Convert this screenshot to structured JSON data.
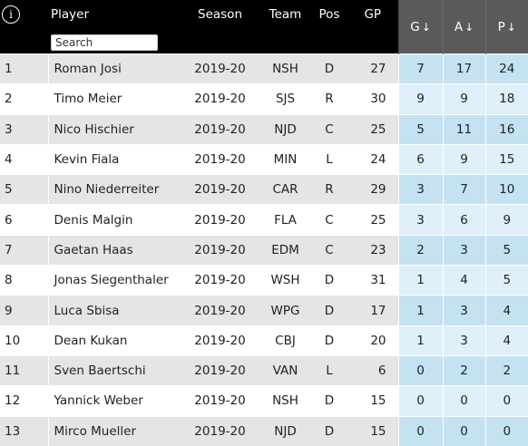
{
  "header": {
    "info_icon": "i",
    "player": "Player",
    "season": "Season",
    "team": "Team",
    "pos": "Pos",
    "gp": "GP",
    "g": "G",
    "a": "A",
    "p": "P",
    "sort_arrow": "↓",
    "search_placeholder": "Search"
  },
  "rows": [
    {
      "rank": "1",
      "player": "Roman Josi",
      "season": "2019-20",
      "team": "NSH",
      "pos": "D",
      "gp": "27",
      "g": "7",
      "a": "17",
      "p": "24"
    },
    {
      "rank": "2",
      "player": "Timo Meier",
      "season": "2019-20",
      "team": "SJS",
      "pos": "R",
      "gp": "30",
      "g": "9",
      "a": "9",
      "p": "18"
    },
    {
      "rank": "3",
      "player": "Nico Hischier",
      "season": "2019-20",
      "team": "NJD",
      "pos": "C",
      "gp": "25",
      "g": "5",
      "a": "11",
      "p": "16"
    },
    {
      "rank": "4",
      "player": "Kevin Fiala",
      "season": "2019-20",
      "team": "MIN",
      "pos": "L",
      "gp": "24",
      "g": "6",
      "a": "9",
      "p": "15"
    },
    {
      "rank": "5",
      "player": "Nino Niederreiter",
      "season": "2019-20",
      "team": "CAR",
      "pos": "R",
      "gp": "29",
      "g": "3",
      "a": "7",
      "p": "10"
    },
    {
      "rank": "6",
      "player": "Denis Malgin",
      "season": "2019-20",
      "team": "FLA",
      "pos": "C",
      "gp": "25",
      "g": "3",
      "a": "6",
      "p": "9"
    },
    {
      "rank": "7",
      "player": "Gaetan Haas",
      "season": "2019-20",
      "team": "EDM",
      "pos": "C",
      "gp": "23",
      "g": "2",
      "a": "3",
      "p": "5"
    },
    {
      "rank": "8",
      "player": "Jonas Siegenthaler",
      "season": "2019-20",
      "team": "WSH",
      "pos": "D",
      "gp": "31",
      "g": "1",
      "a": "4",
      "p": "5"
    },
    {
      "rank": "9",
      "player": "Luca Sbisa",
      "season": "2019-20",
      "team": "WPG",
      "pos": "D",
      "gp": "17",
      "g": "1",
      "a": "3",
      "p": "4"
    },
    {
      "rank": "10",
      "player": "Dean Kukan",
      "season": "2019-20",
      "team": "CBJ",
      "pos": "D",
      "gp": "20",
      "g": "1",
      "a": "3",
      "p": "4"
    },
    {
      "rank": "11",
      "player": "Sven Baertschi",
      "season": "2019-20",
      "team": "VAN",
      "pos": "L",
      "gp": "6",
      "g": "0",
      "a": "2",
      "p": "2"
    },
    {
      "rank": "12",
      "player": "Yannick Weber",
      "season": "2019-20",
      "team": "NSH",
      "pos": "D",
      "gp": "15",
      "g": "0",
      "a": "0",
      "p": "0"
    },
    {
      "rank": "13",
      "player": "Mirco Mueller",
      "season": "2019-20",
      "team": "NJD",
      "pos": "D",
      "gp": "15",
      "g": "0",
      "a": "0",
      "p": "0"
    }
  ]
}
